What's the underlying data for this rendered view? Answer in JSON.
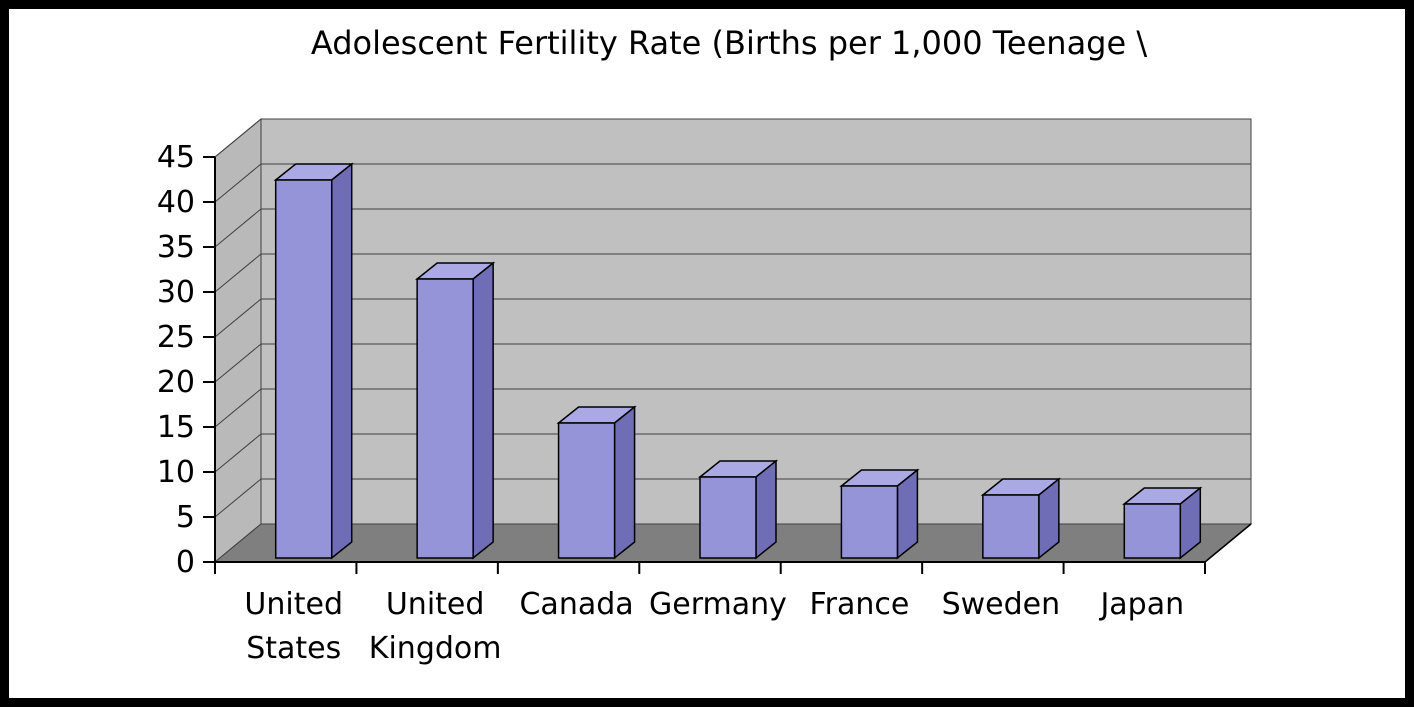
{
  "frame": {
    "border_color": "#000000",
    "background": "#ffffff"
  },
  "chart_data": {
    "type": "bar",
    "projection": "3d",
    "title": "Adolescent Fertility Rate (Births per 1,000 Teenage \\",
    "categories": [
      "United States",
      "United Kingdom",
      "Canada",
      "Germany",
      "France",
      "Sweden",
      "Japan"
    ],
    "category_label_lines": [
      [
        "United",
        "States"
      ],
      [
        "United",
        "Kingdom"
      ],
      [
        "Canada"
      ],
      [
        "Germany"
      ],
      [
        "France"
      ],
      [
        "Sweden"
      ],
      [
        "Japan"
      ]
    ],
    "values": [
      42,
      31,
      15,
      9,
      8,
      7,
      6
    ],
    "xlabel": "",
    "ylabel": "",
    "ylim": [
      0,
      45
    ],
    "ytick_interval": 5,
    "yticks": [
      0,
      5,
      10,
      15,
      20,
      25,
      30,
      35,
      40,
      45
    ],
    "legend": "none",
    "grid": true,
    "colors": {
      "bar_front": "#9694d9",
      "bar_top": "#aaa9e4",
      "bar_side": "#6f6db6",
      "wall_back": "#c0c0c0",
      "wall_left": "#b9b9b9",
      "floor": "#7f7f7f",
      "gridline": "#404040",
      "axis": "#000000",
      "text": "#000000"
    }
  }
}
